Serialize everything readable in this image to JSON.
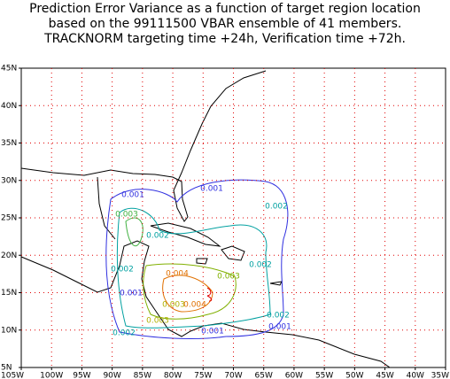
{
  "title": [
    "Prediction Error Variance as a function of target region location",
    "based on the 99111500 VBAR ensemble of 41 members.",
    "TRACKNORM targeting time +24h, Verification time +72h."
  ],
  "lat_labels": [
    "45N",
    "40N",
    "35N",
    "30N",
    "25N",
    "20N",
    "15N",
    "10N",
    "5N"
  ],
  "lon_labels": [
    "105W",
    "100W",
    "95W",
    "90W",
    "85W",
    "80W",
    "75W",
    "70W",
    "65W",
    "60W",
    "55W",
    "50W",
    "45W",
    "40W",
    "35W"
  ],
  "contour_labels": [
    {
      "label": "0.001",
      "color": "#3030e0"
    },
    {
      "label": "0.003",
      "color": "#40b040"
    },
    {
      "label": "0.002",
      "color": "#00a0a0"
    },
    {
      "label": "0.001",
      "color": "#3030e0"
    },
    {
      "label": "0.002",
      "color": "#00a0a0"
    },
    {
      "label": "0.002",
      "color": "#00a0a0"
    },
    {
      "label": "0.004",
      "color": "#e07000"
    },
    {
      "label": "0.002",
      "color": "#00a0a0"
    },
    {
      "label": "0.003",
      "color": "#80b000"
    },
    {
      "label": "0.001",
      "color": "#3030e0"
    },
    {
      "label": "0.003",
      "color": "#b0b000"
    },
    {
      "label": "0.004",
      "color": "#e07000"
    },
    {
      "label": "0.003",
      "color": "#b0b000"
    },
    {
      "label": "0.002",
      "color": "#00a0a0"
    },
    {
      "label": "0.001",
      "color": "#3030e0"
    },
    {
      "label": "0.002",
      "color": "#00a0a0"
    },
    {
      "label": "0.001",
      "color": "#3030e0"
    }
  ]
}
